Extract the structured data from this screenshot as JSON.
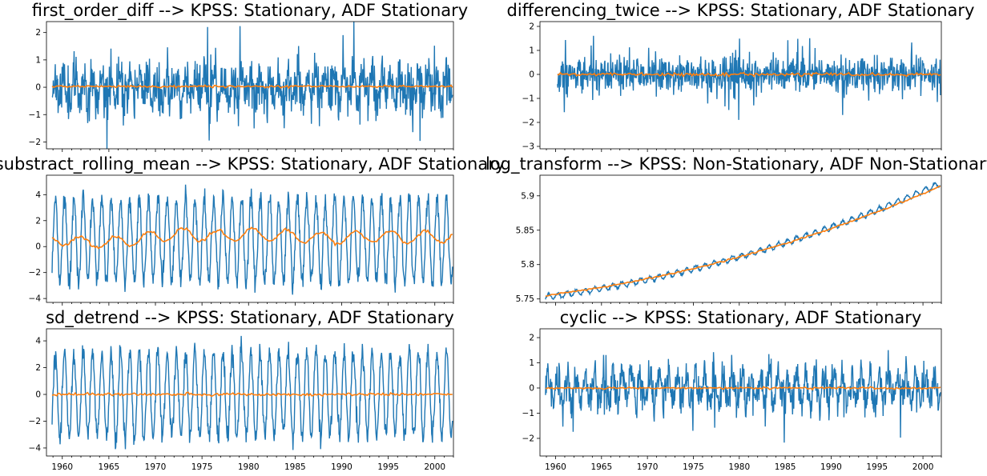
{
  "chart_data": [
    {
      "type": "line",
      "title": "first_order_diff --> KPSS: Stationary, ADF Stationary",
      "xlim": [
        1958.3,
        2002.0
      ],
      "ylim": [
        -2.25,
        2.4
      ],
      "yticks": [
        -2,
        -1,
        0,
        1,
        2
      ],
      "show_xtick_labels": false,
      "series": [
        {
          "color": "#1f77b4",
          "kind": "first_diff",
          "amplitude": 1.0,
          "offset": 0.0,
          "seed": 11
        },
        {
          "color": "#ff7f0e",
          "kind": "flat",
          "offset": 0.03,
          "jitter": 0.02,
          "seed": 21
        }
      ]
    },
    {
      "type": "line",
      "title": "differencing_twice --> KPSS: Stationary, ADF Stationary",
      "xlim": [
        1958.3,
        2002.0
      ],
      "ylim": [
        -3.1,
        2.2
      ],
      "yticks": [
        -3,
        -2,
        -1,
        0,
        1,
        2
      ],
      "show_xtick_labels": false,
      "series": [
        {
          "color": "#1f77b4",
          "kind": "second_diff",
          "amplitude": 0.8,
          "offset": 0.0,
          "seed": 12
        },
        {
          "color": "#ff7f0e",
          "kind": "flat",
          "offset": 0.0,
          "jitter": 0.03,
          "seed": 22
        }
      ]
    },
    {
      "type": "line",
      "title": "substract_rolling_mean --> KPSS: Stationary, ADF Stationary",
      "xlim": [
        1958.3,
        2002.0
      ],
      "ylim": [
        -4.3,
        5.5
      ],
      "yticks": [
        -4,
        -2,
        0,
        2,
        4
      ],
      "show_xtick_labels": false,
      "series": [
        {
          "color": "#1f77b4",
          "kind": "seasonal",
          "amplitude": 3.2,
          "offset": 0.5,
          "seed": 13
        },
        {
          "color": "#ff7f0e",
          "kind": "wander",
          "offset": 0.6,
          "jitter": 0.45,
          "seed": 23
        }
      ]
    },
    {
      "type": "line",
      "title": "log_transform --> KPSS: Non-Stationary, ADF Non-Stationary",
      "xlim": [
        1958.3,
        2002.0
      ],
      "ylim": [
        5.745,
        5.93
      ],
      "yticks": [
        5.75,
        5.8,
        5.85,
        5.9
      ],
      "show_xtick_labels": false,
      "series": [
        {
          "color": "#1f77b4",
          "kind": "log_trend",
          "amplitude": 0.004,
          "start": 5.753,
          "end": 5.918,
          "seed": 14
        },
        {
          "color": "#ff7f0e",
          "kind": "smooth_trend",
          "start": 5.755,
          "end": 5.914,
          "seed": 24
        }
      ]
    },
    {
      "type": "line",
      "title": "sd_detrend --> KPSS: Stationary, ADF Stationary",
      "xlim": [
        1958.3,
        2002.0
      ],
      "ylim": [
        -4.6,
        4.9
      ],
      "yticks": [
        -4,
        -2,
        0,
        2,
        4
      ],
      "show_xtick_labels": true,
      "xticks": [
        1960,
        1965,
        1970,
        1975,
        1980,
        1985,
        1990,
        1995,
        2000
      ],
      "series": [
        {
          "color": "#1f77b4",
          "kind": "seasonal",
          "amplitude": 3.1,
          "offset": 0.0,
          "seed": 15
        },
        {
          "color": "#ff7f0e",
          "kind": "flat",
          "offset": 0.0,
          "jitter": 0.05,
          "seed": 25
        }
      ]
    },
    {
      "type": "line",
      "title": "cyclic --> KPSS: Stationary, ADF Stationary",
      "xlim": [
        1958.3,
        2002.0
      ],
      "ylim": [
        -2.7,
        2.35
      ],
      "yticks": [
        -2,
        -1,
        0,
        1,
        2
      ],
      "show_xtick_labels": true,
      "xticks": [
        1960,
        1965,
        1970,
        1975,
        1980,
        1985,
        1990,
        1995,
        2000
      ],
      "series": [
        {
          "color": "#1f77b4",
          "kind": "cyclic",
          "amplitude": 0.9,
          "offset": 0.0,
          "seed": 16
        },
        {
          "color": "#ff7f0e",
          "kind": "flat",
          "offset": 0.0,
          "jitter": 0.02,
          "seed": 26
        }
      ]
    }
  ]
}
